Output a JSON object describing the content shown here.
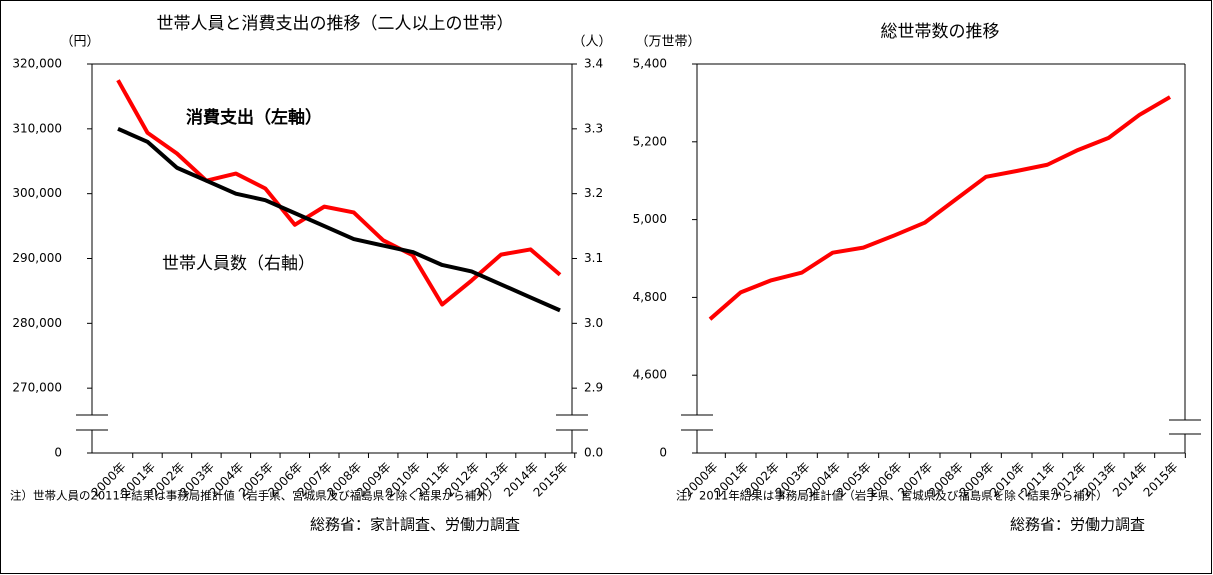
{
  "chart_data": [
    {
      "type": "line",
      "title": "世帯人員と消費支出の推移（二人以上の世帯）",
      "y_label": "（円）",
      "y2_label": "（人）",
      "categories": [
        "2000年",
        "2001年",
        "2002年",
        "2003年",
        "2004年",
        "2005年",
        "2006年",
        "2007年",
        "2008年",
        "2009年",
        "2010年",
        "2011年",
        "2012年",
        "2013年",
        "2014年",
        "2015年"
      ],
      "series": [
        {
          "name": "消費支出（左軸）",
          "color": "#ff0000",
          "values": [
            317500,
            309400,
            306200,
            302000,
            303100,
            300800,
            295200,
            298000,
            297100,
            292800,
            290500,
            282900,
            286600,
            290600,
            291400,
            287500
          ]
        },
        {
          "name": "世帯人員数（右軸）",
          "color": "#000000",
          "axis": "y2",
          "values": [
            3.3,
            3.28,
            3.24,
            3.22,
            3.2,
            3.19,
            3.17,
            3.15,
            3.13,
            3.12,
            3.11,
            3.09,
            3.08,
            3.06,
            3.04,
            3.02
          ]
        }
      ],
      "ylim": [
        0,
        320000
      ],
      "ybreak": [
        0,
        260000
      ],
      "yticks": [
        0,
        {
          "value": 270000,
          "label": "270,000"
        },
        {
          "value": 280000,
          "label": "280,000"
        },
        {
          "value": 290000,
          "label": "290,000"
        },
        {
          "value": 300000,
          "label": "300,000"
        },
        {
          "value": 310000,
          "label": "310,000"
        },
        {
          "value": 320000,
          "label": "320,000"
        }
      ],
      "y2lim": [
        0,
        3.4
      ],
      "y2break": [
        0,
        2.8
      ],
      "y2ticks": [
        {
          "value": 0,
          "label": "0.0"
        },
        2.9,
        {
          "value": 3,
          "label": "3.0"
        },
        3.1,
        3.2,
        3.3,
        3.4
      ],
      "note": "注）世帯人員の2011年結果は事務局推計値（岩手県、宮城県及び福島県を除く結果から補外）",
      "source": "総務省：家計調査、労働力調査"
    },
    {
      "type": "line",
      "title": "総世帯数の推移",
      "y_label": "（万世帯）",
      "categories": [
        "2000年",
        "2001年",
        "2002年",
        "2003年",
        "2004年",
        "2005年",
        "2006年",
        "2007年",
        "2008年",
        "2009年",
        "2010年",
        "2011年",
        "2012年",
        "2013年",
        "2014年",
        "2015年"
      ],
      "values": [
        4744,
        4813,
        4844,
        4864,
        4915,
        4928,
        4959,
        4992,
        5051,
        5110,
        5125,
        5141,
        5179,
        5210,
        5269,
        5315
      ],
      "color": "#ff0000",
      "ylim": [
        0,
        5400
      ],
      "ybreak": [
        0,
        4400
      ],
      "yticks": [
        0,
        {
          "value": 4600,
          "label": "4,600"
        },
        {
          "value": 4800,
          "label": "4,800"
        },
        {
          "value": 5000,
          "label": "5,000"
        },
        {
          "value": 5200,
          "label": "5,200"
        },
        {
          "value": 5400,
          "label": "5,400"
        }
      ],
      "note": "注）2011年結果は事務局推計値（岩手県、宮城県及び福島県を除く結果から補外）",
      "source": "総務省：労働力調査"
    }
  ]
}
